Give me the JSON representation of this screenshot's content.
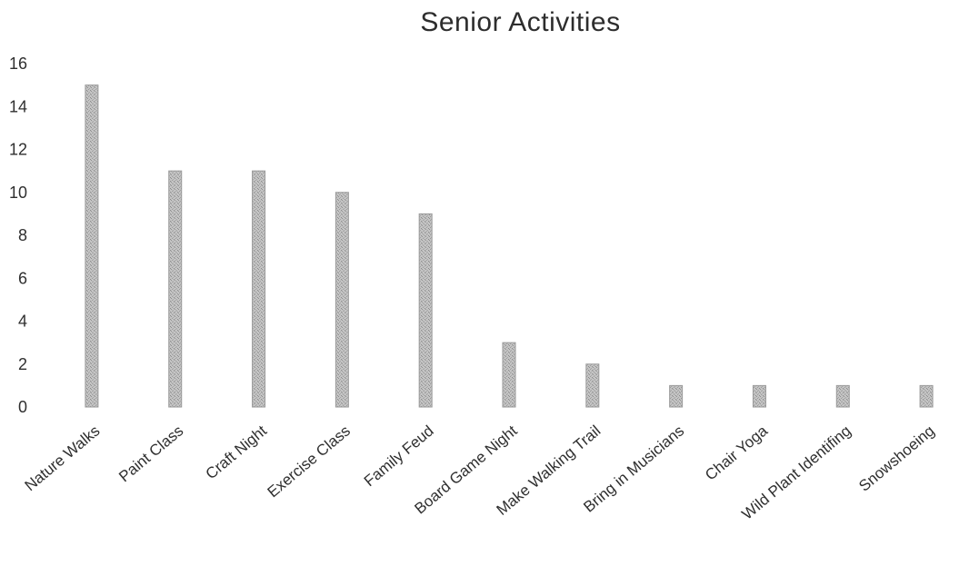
{
  "chart_data": {
    "type": "bar",
    "title": "Senior Activities",
    "xlabel": "",
    "ylabel": "",
    "categories": [
      "Nature Walks",
      "Paint Class",
      "Craft Night",
      "Exercise Class",
      "Family Feud",
      "Board Game Night",
      "Make Walking Trail",
      "Bring in Musicians",
      "Chair Yoga",
      "Wild Plant Identifing",
      "Snowshoeing"
    ],
    "values": [
      15,
      11,
      11,
      10,
      9,
      3,
      2,
      1,
      1,
      1,
      1
    ],
    "ylim": [
      0,
      16
    ],
    "yticks": [
      0,
      2,
      4,
      6,
      8,
      10,
      12,
      14,
      16
    ],
    "grid": false,
    "legend": "none",
    "bar_color": "#b8b8b8"
  }
}
